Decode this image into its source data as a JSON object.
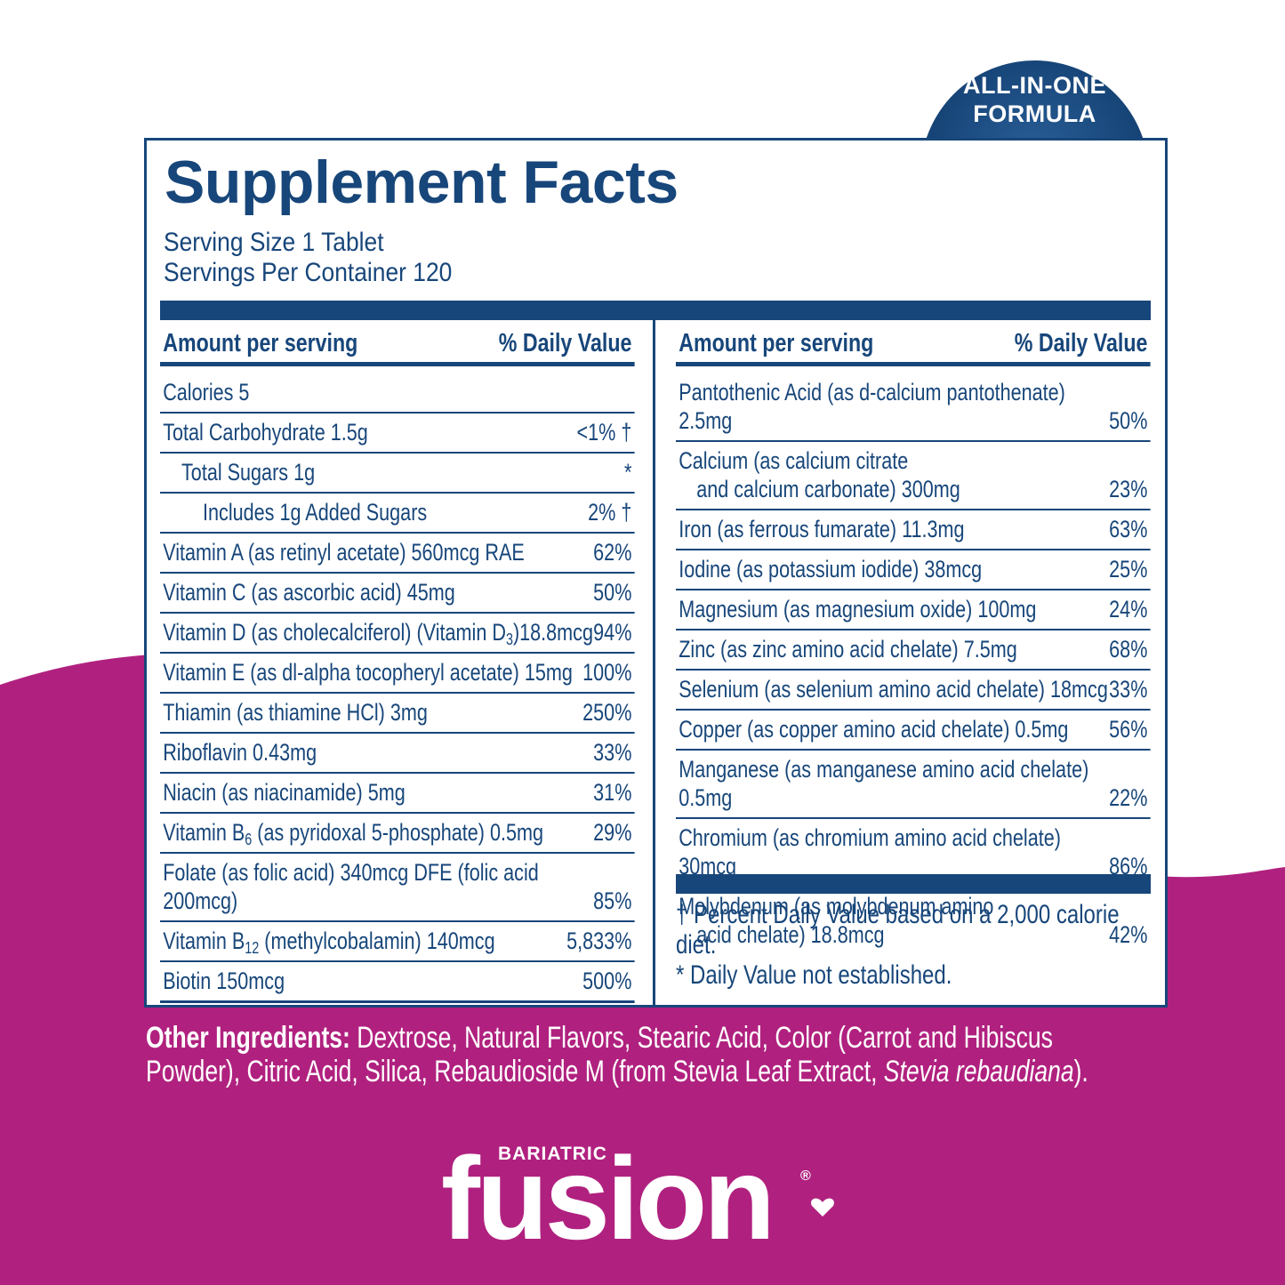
{
  "badge": {
    "line1": "ALL-IN-ONE",
    "line2": "FORMULA"
  },
  "title": "Supplement Facts",
  "serving_size": "Serving Size 1 Tablet",
  "servings_per_container": "Servings Per Container 120",
  "columns": [
    {
      "header": {
        "amount": "Amount per serving",
        "dv": "% Daily Value"
      },
      "rows": [
        {
          "name": [
            "Calories 5"
          ],
          "dv": ""
        },
        {
          "name": [
            "Total Carbohydrate 1.5g"
          ],
          "dv": "<1% †"
        },
        {
          "name": [
            "Total Sugars 1g"
          ],
          "dv": "*"
        },
        {
          "name": [
            "Includes 1g Added Sugars"
          ],
          "dv": "2% †"
        },
        {
          "name": [
            "Vitamin A (as retinyl acetate) 560mcg RAE"
          ],
          "dv": "62%"
        },
        {
          "name": [
            "Vitamin C (as ascorbic acid) 45mg"
          ],
          "dv": "50%"
        },
        {
          "name": [
            "Vitamin D (as cholecalciferol) (Vitamin D",
            "3",
            ")18.8mcg"
          ],
          "dv": "94%"
        },
        {
          "name": [
            "Vitamin E (as dl-alpha tocopheryl acetate) 15mg"
          ],
          "dv": "100%"
        },
        {
          "name": [
            "Thiamin (as thiamine HCl) 3mg"
          ],
          "dv": "250%"
        },
        {
          "name": [
            "Riboflavin 0.43mg"
          ],
          "dv": "33%"
        },
        {
          "name": [
            "Niacin (as niacinamide) 5mg"
          ],
          "dv": "31%"
        },
        {
          "name": [
            "Vitamin B",
            "6",
            " (as pyridoxal 5-phosphate) 0.5mg"
          ],
          "dv": "29%"
        },
        {
          "name": [
            "Folate (as folic acid) 340mcg DFE (folic acid 200mcg)"
          ],
          "dv": "85%"
        },
        {
          "name": [
            "Vitamin B",
            "12",
            " (methylcobalamin) 140mcg"
          ],
          "dv": "5,833%"
        },
        {
          "name": [
            "Biotin 150mcg"
          ],
          "dv": "500%"
        }
      ]
    },
    {
      "header": {
        "amount": "Amount per serving",
        "dv": "% Daily Value"
      },
      "rows": [
        {
          "name": [
            "Pantothenic Acid (as d-calcium pantothenate) 2.5mg"
          ],
          "dv": "50%"
        },
        {
          "lines": [
            "Calcium (as calcium citrate",
            "and calcium carbonate) 300mg"
          ],
          "dv": "23%"
        },
        {
          "name": [
            "Iron (as ferrous fumarate) 11.3mg"
          ],
          "dv": "63%"
        },
        {
          "name": [
            "Iodine (as potassium iodide) 38mcg"
          ],
          "dv": "25%"
        },
        {
          "name": [
            "Magnesium (as magnesium oxide) 100mg"
          ],
          "dv": "24%"
        },
        {
          "name": [
            "Zinc (as zinc amino acid chelate) 7.5mg"
          ],
          "dv": "68%"
        },
        {
          "name": [
            "Selenium (as selenium amino acid chelate) 18mcg"
          ],
          "dv": "33%"
        },
        {
          "name": [
            "Copper (as copper amino acid chelate) 0.5mg"
          ],
          "dv": "56%"
        },
        {
          "name": [
            "Manganese (as manganese amino acid chelate) 0.5mg"
          ],
          "dv": "22%"
        },
        {
          "name": [
            "Chromium (as chromium amino acid chelate) 30mcg"
          ],
          "dv": "86%"
        },
        {
          "lines": [
            "Molybdenum (as molybdenum amino",
            "acid chelate) 18.8mcg"
          ],
          "dv": "42%"
        }
      ]
    }
  ],
  "footnotes": [
    "† Percent Daily Value based on a 2,000 calorie diet.",
    "* Daily Value not established."
  ],
  "other_ingredients": {
    "label": "Other Ingredients:",
    "text": "Dextrose, Natural Flavors, Stearic Acid, Color (Carrot and Hibiscus Powder), Citric Acid, Silica, Rebaudioside M (from Stevia Leaf Extract,",
    "italic": "Stevia rebaudiana",
    "end": ")."
  },
  "brand": {
    "small": "BARIATRIC",
    "name": "fusion",
    "mark": "®"
  }
}
